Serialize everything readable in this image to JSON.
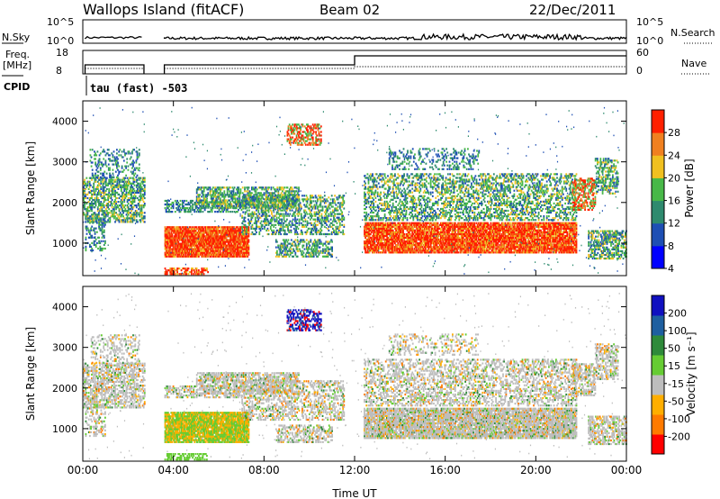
{
  "header": {
    "site": "Wallops Island (fitACF)",
    "beam": "Beam 02",
    "date": "22/Dec/2011"
  },
  "strips": {
    "nsky": {
      "label": "N.Sky",
      "ticks": [
        "10^5",
        "10^0"
      ]
    },
    "nsearch": {
      "label": "N.Search",
      "ticks": [
        "10^5",
        "10^0"
      ]
    },
    "freq": {
      "label_top": "Freq.",
      "label_unit": "[MHz]",
      "ticks": [
        "18",
        "8"
      ]
    },
    "nave": {
      "label": "Nave",
      "ticks": [
        "60",
        "0"
      ]
    },
    "cpid": {
      "label": "CPID",
      "text": "tau (fast) -503"
    }
  },
  "chart_data": [
    {
      "type": "heatmap",
      "title": "",
      "xlabel": "",
      "ylabel": "Slant Range [km]",
      "ylim": [
        200,
        4500
      ],
      "x_ticks": [
        "00:00",
        "04:00",
        "08:00",
        "12:00",
        "16:00",
        "20:00",
        "00:00"
      ],
      "y_ticks": [
        "1000",
        "2000",
        "3000",
        "4000"
      ],
      "colorbar": {
        "label": "Power [dB]",
        "ticks": [
          "28",
          "24",
          "20",
          "16",
          "12",
          "8",
          "4"
        ],
        "colors": [
          "#0000ff",
          "#1e4fb4",
          "#2e8a6e",
          "#48b848",
          "#f0c020",
          "#f08020",
          "#ff2000"
        ]
      }
    },
    {
      "type": "heatmap",
      "title": "",
      "xlabel": "Time UT",
      "ylabel": "Slant Range [km]",
      "ylim": [
        200,
        4500
      ],
      "x_ticks": [
        "00:00",
        "04:00",
        "08:00",
        "12:00",
        "16:00",
        "20:00",
        "00:00"
      ],
      "y_ticks": [
        "1000",
        "2000",
        "3000",
        "4000"
      ],
      "colorbar": {
        "label": "Velocity [m s⁻¹]",
        "ticks": [
          "200",
          "100",
          "50",
          "15",
          "-15",
          "-50",
          "-100",
          "-200"
        ],
        "colors": [
          "#ff0000",
          "#ff7a00",
          "#ffae00",
          "#bdbdbd",
          "#66cc33",
          "#2e8a3a",
          "#1e5fa0",
          "#1010c0"
        ]
      }
    }
  ]
}
